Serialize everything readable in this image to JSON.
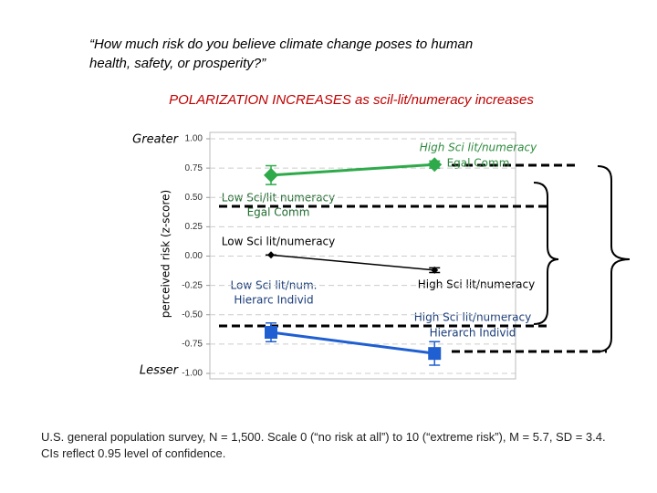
{
  "chart_data": {
    "type": "line",
    "title": "“How much risk do you believe climate change poses to human health, safety, or prosperity?”",
    "subtitle": "POLARIZATION INCREASES as scil-lit/numeracy increases",
    "y_label": "perceived risk (z-score)",
    "y_top_label": "Greater",
    "y_bottom_label": "Lesser",
    "footnote": "U.S. general population survey, N = 1,500. Scale 0 (“no risk at all”) to 10 (“extreme risk”), M = 5.7, SD = 3.4. CIs reflect 0.95 level of confidence.",
    "categories": [
      null,
      null
    ],
    "series": [
      {
        "color": "#2eaa4a",
        "marker": "diamond",
        "values": [
          0.69,
          0.78
        ],
        "errors": [
          0.08,
          0.03
        ]
      },
      {
        "color": "#000000",
        "marker": "small-diamond",
        "values": [
          0.01,
          -0.12
        ],
        "errors": [
          0.0,
          0.02
        ]
      },
      {
        "color": "#1f5fd1",
        "marker": "square",
        "values": [
          -0.65,
          -0.83
        ],
        "errors": [
          0.08,
          0.1
        ]
      }
    ],
    "ylim": [
      -1,
      1
    ],
    "yticks": [
      {
        "value": 1,
        "label": "1.00"
      },
      0.75,
      {
        "value": 0.5,
        "label": "0.50"
      },
      0.25,
      {
        "value": 0,
        "label": "0.00"
      },
      -0.25,
      {
        "value": -0.5,
        "label": "-0.50"
      },
      -0.75,
      {
        "value": -1,
        "label": "-1.00"
      }
    ],
    "grid": true,
    "annotations": [
      "High Sci lit/numeracy",
      "Egal Comm",
      "Low Sci/lit numeracy",
      "Egal Comm",
      "Low Sci lit/numeracy",
      "Low Sci lit/num.",
      "Hierarc Individ",
      "High Sci lit/numeracy",
      "High Sci lit/numeracy",
      "Hierarch Individ"
    ]
  }
}
